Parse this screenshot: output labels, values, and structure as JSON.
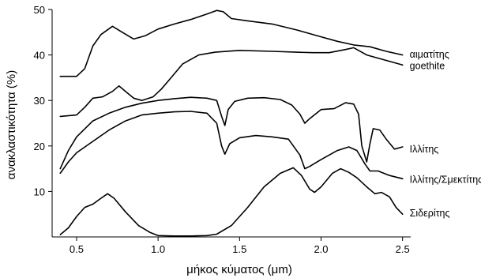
{
  "chart_data": {
    "type": "line",
    "xlabel": "μήκος κύματος (μm)",
    "ylabel": "ανακλαστικότητα (%)",
    "xlim": [
      0.35,
      2.55
    ],
    "ylim": [
      0,
      50
    ],
    "x_ticks": [
      0.5,
      1.0,
      1.5,
      2.0,
      2.5
    ],
    "x_tick_labels": [
      "0.5",
      "1.0",
      "1.5",
      "2.0",
      "2.5"
    ],
    "y_ticks": [
      10,
      20,
      30,
      40,
      50
    ],
    "y_tick_labels": [
      "10",
      "20",
      "30",
      "40",
      "50"
    ],
    "series": [
      {
        "name": "αιματίτης",
        "points": [
          [
            0.4,
            35.3
          ],
          [
            0.5,
            35.3
          ],
          [
            0.55,
            37.0
          ],
          [
            0.6,
            42.0
          ],
          [
            0.65,
            44.5
          ],
          [
            0.72,
            46.3
          ],
          [
            0.78,
            45.0
          ],
          [
            0.85,
            43.5
          ],
          [
            0.92,
            44.2
          ],
          [
            1.0,
            45.7
          ],
          [
            1.1,
            46.8
          ],
          [
            1.2,
            47.8
          ],
          [
            1.3,
            49.0
          ],
          [
            1.36,
            49.8
          ],
          [
            1.4,
            49.5
          ],
          [
            1.45,
            48.0
          ],
          [
            1.55,
            47.5
          ],
          [
            1.7,
            46.8
          ],
          [
            1.85,
            45.5
          ],
          [
            2.0,
            44.0
          ],
          [
            2.1,
            43.0
          ],
          [
            2.2,
            42.2
          ],
          [
            2.3,
            41.8
          ],
          [
            2.4,
            40.8
          ],
          [
            2.5,
            40.0
          ]
        ],
        "label_y": 40.1
      },
      {
        "name": "goethite",
        "points": [
          [
            0.4,
            26.5
          ],
          [
            0.5,
            26.8
          ],
          [
            0.55,
            28.5
          ],
          [
            0.6,
            30.5
          ],
          [
            0.66,
            30.8
          ],
          [
            0.72,
            32.0
          ],
          [
            0.76,
            33.2
          ],
          [
            0.8,
            32.0
          ],
          [
            0.85,
            30.5
          ],
          [
            0.9,
            30.0
          ],
          [
            0.97,
            30.8
          ],
          [
            1.02,
            32.5
          ],
          [
            1.08,
            35.0
          ],
          [
            1.15,
            38.0
          ],
          [
            1.25,
            40.0
          ],
          [
            1.35,
            40.6
          ],
          [
            1.5,
            41.0
          ],
          [
            1.7,
            40.8
          ],
          [
            1.85,
            40.6
          ],
          [
            1.95,
            40.5
          ],
          [
            2.05,
            40.5
          ],
          [
            2.15,
            41.2
          ],
          [
            2.2,
            41.6
          ],
          [
            2.28,
            40.0
          ],
          [
            2.4,
            38.8
          ],
          [
            2.5,
            37.8
          ]
        ],
        "label_y": 37.6
      },
      {
        "name": "Ιλλίτης",
        "points": [
          [
            0.4,
            15.0
          ],
          [
            0.45,
            19.0
          ],
          [
            0.5,
            22.0
          ],
          [
            0.6,
            25.5
          ],
          [
            0.7,
            27.2
          ],
          [
            0.8,
            28.5
          ],
          [
            0.9,
            29.4
          ],
          [
            1.0,
            30.0
          ],
          [
            1.1,
            30.4
          ],
          [
            1.2,
            30.7
          ],
          [
            1.3,
            30.5
          ],
          [
            1.36,
            30.0
          ],
          [
            1.39,
            26.5
          ],
          [
            1.41,
            24.5
          ],
          [
            1.43,
            28.0
          ],
          [
            1.47,
            29.8
          ],
          [
            1.55,
            30.5
          ],
          [
            1.65,
            30.6
          ],
          [
            1.75,
            30.2
          ],
          [
            1.82,
            29.0
          ],
          [
            1.87,
            27.0
          ],
          [
            1.9,
            25.0
          ],
          [
            1.93,
            26.0
          ],
          [
            2.0,
            28.0
          ],
          [
            2.08,
            28.2
          ],
          [
            2.15,
            29.5
          ],
          [
            2.2,
            29.2
          ],
          [
            2.23,
            27.0
          ],
          [
            2.25,
            20.0
          ],
          [
            2.28,
            16.5
          ],
          [
            2.3,
            20.5
          ],
          [
            2.32,
            23.8
          ],
          [
            2.36,
            23.5
          ],
          [
            2.4,
            21.5
          ],
          [
            2.45,
            19.3
          ],
          [
            2.5,
            19.8
          ]
        ],
        "label_y": 19.3
      },
      {
        "name": "Ιλλίτης/Σμεκτίτης",
        "points": [
          [
            0.4,
            14.0
          ],
          [
            0.45,
            16.5
          ],
          [
            0.5,
            18.5
          ],
          [
            0.6,
            21.0
          ],
          [
            0.7,
            23.5
          ],
          [
            0.8,
            25.5
          ],
          [
            0.9,
            26.8
          ],
          [
            1.0,
            27.2
          ],
          [
            1.1,
            27.5
          ],
          [
            1.2,
            27.6
          ],
          [
            1.3,
            27.2
          ],
          [
            1.36,
            25.0
          ],
          [
            1.39,
            20.0
          ],
          [
            1.41,
            18.2
          ],
          [
            1.44,
            20.5
          ],
          [
            1.5,
            21.8
          ],
          [
            1.6,
            22.3
          ],
          [
            1.7,
            22.0
          ],
          [
            1.8,
            21.5
          ],
          [
            1.87,
            18.0
          ],
          [
            1.9,
            15.0
          ],
          [
            1.93,
            15.5
          ],
          [
            2.0,
            17.0
          ],
          [
            2.1,
            19.0
          ],
          [
            2.17,
            19.8
          ],
          [
            2.22,
            19.0
          ],
          [
            2.27,
            16.0
          ],
          [
            2.3,
            14.5
          ],
          [
            2.35,
            14.5
          ],
          [
            2.42,
            13.5
          ],
          [
            2.5,
            12.8
          ]
        ],
        "label_y": 12.6
      },
      {
        "name": "Σιδερίτης",
        "points": [
          [
            0.4,
            0.5
          ],
          [
            0.45,
            2.0
          ],
          [
            0.5,
            4.5
          ],
          [
            0.55,
            6.5
          ],
          [
            0.6,
            7.2
          ],
          [
            0.65,
            8.5
          ],
          [
            0.69,
            9.5
          ],
          [
            0.73,
            8.5
          ],
          [
            0.8,
            5.5
          ],
          [
            0.88,
            2.5
          ],
          [
            0.95,
            1.0
          ],
          [
            1.0,
            0.3
          ],
          [
            1.1,
            0.2
          ],
          [
            1.2,
            0.2
          ],
          [
            1.3,
            0.3
          ],
          [
            1.36,
            0.6
          ],
          [
            1.45,
            2.5
          ],
          [
            1.55,
            6.5
          ],
          [
            1.65,
            11.0
          ],
          [
            1.75,
            14.0
          ],
          [
            1.83,
            15.2
          ],
          [
            1.88,
            13.5
          ],
          [
            1.93,
            10.5
          ],
          [
            1.96,
            9.8
          ],
          [
            2.0,
            11.0
          ],
          [
            2.07,
            14.0
          ],
          [
            2.12,
            15.0
          ],
          [
            2.17,
            14.2
          ],
          [
            2.22,
            13.0
          ],
          [
            2.28,
            11.0
          ],
          [
            2.33,
            9.5
          ],
          [
            2.37,
            9.8
          ],
          [
            2.42,
            8.8
          ],
          [
            2.46,
            6.5
          ],
          [
            2.5,
            5.0
          ]
        ],
        "label_y": 5.2
      }
    ]
  }
}
